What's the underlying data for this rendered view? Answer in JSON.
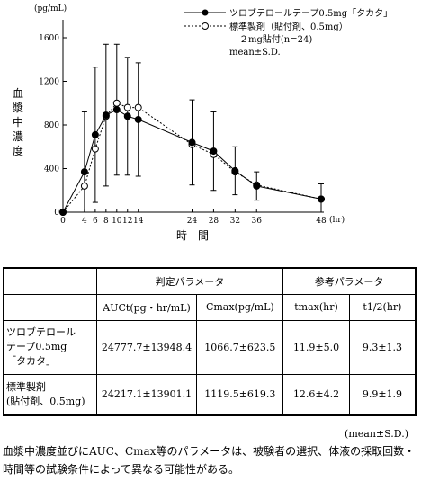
{
  "chart_data": {
    "type": "line",
    "x_unit": "(hr)",
    "y_unit": "(pg/mL)",
    "xlabel": "時　間",
    "ylabel": "血漿中濃度",
    "xlim": [
      0,
      48
    ],
    "ylim": [
      0,
      1600
    ],
    "x_ticks": [
      0,
      4,
      6,
      8,
      10,
      12,
      14,
      24,
      28,
      32,
      36,
      48
    ],
    "y_ticks": [
      0,
      400,
      800,
      1200,
      1600
    ],
    "series": [
      {
        "name": "ツロブテロールテープ0.5mg「タカタ」",
        "marker": "filled-circle",
        "line": "solid",
        "x": [
          0,
          4,
          6,
          8,
          10,
          12,
          14,
          24,
          28,
          32,
          36,
          48
        ],
        "y": [
          0,
          370,
          710,
          890,
          940,
          880,
          850,
          640,
          560,
          380,
          240,
          120
        ],
        "err": [
          0,
          550,
          620,
          650,
          600,
          540,
          520,
          390,
          360,
          220,
          130,
          140
        ]
      },
      {
        "name": "標準製剤（貼付剤、0.5mg）",
        "name2": "２mg貼付(n=24)",
        "marker": "open-circle",
        "line": "dotted",
        "x": [
          0,
          4,
          6,
          8,
          10,
          12,
          14,
          24,
          28,
          32,
          36,
          48
        ],
        "y": [
          0,
          240,
          580,
          880,
          1000,
          960,
          960,
          620,
          530,
          370,
          250,
          120
        ],
        "err": [
          0,
          0,
          0,
          0,
          0,
          0,
          0,
          0,
          0,
          0,
          0,
          0
        ]
      }
    ],
    "legend_note": "mean±S.D."
  },
  "table": {
    "group1": "判定パラメータ",
    "group2": "参考パラメータ",
    "col_auc": "AUCt(pg・hr/mL)",
    "col_cmax": "Cmax(pg/mL)",
    "col_tmax": "tmax(hr)",
    "col_thalf": "t1/2(hr)",
    "rows": [
      {
        "name1": "ツロブテロール",
        "name2": "テープ0.5mg",
        "name3": "「タカタ」",
        "auc": "24777.7±13948.4",
        "cmax": "1066.7±623.5",
        "tmax": "11.9±5.0",
        "thalf": "9.3±1.3"
      },
      {
        "name1": "標準製剤",
        "name2": "(貼付剤、0.5mg)",
        "name3": "",
        "auc": "24217.1±13901.1",
        "cmax": "1119.5±619.3",
        "tmax": "12.6±4.2",
        "thalf": "9.9±1.9"
      }
    ]
  },
  "note": "(mean±S.D.)",
  "footnote": "血漿中濃度並びにAUC、Cmax等のパラメータは、被験者の選択、体液の採取回数・時間等の試験条件によって異なる可能性がある。"
}
